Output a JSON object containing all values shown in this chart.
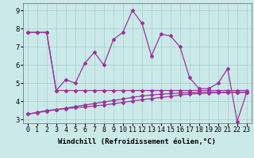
{
  "xlabel": "Windchill (Refroidissement éolien,°C)",
  "ylabel": "",
  "background_color": "#cce9e9",
  "grid_color": "#aad4d4",
  "line_color": "#993399",
  "x_values": [
    0,
    1,
    2,
    3,
    4,
    5,
    6,
    7,
    8,
    9,
    10,
    11,
    12,
    13,
    14,
    15,
    16,
    17,
    18,
    19,
    20,
    21,
    22,
    23
  ],
  "line1_y": [
    7.8,
    7.8,
    7.8,
    4.6,
    5.2,
    5.0,
    6.1,
    6.7,
    6.0,
    7.4,
    7.8,
    9.0,
    8.3,
    6.5,
    7.7,
    7.6,
    7.0,
    5.3,
    4.7,
    4.7,
    5.0,
    5.8,
    2.9,
    4.5
  ],
  "line2_y": [
    7.8,
    7.8,
    7.8,
    4.6,
    4.6,
    4.6,
    4.6,
    4.6,
    4.6,
    4.6,
    4.6,
    4.6,
    4.6,
    4.6,
    4.6,
    4.6,
    4.6,
    4.6,
    4.6,
    4.6,
    4.6,
    4.6,
    4.6,
    4.6
  ],
  "line3_y": [
    3.3,
    3.4,
    3.5,
    3.55,
    3.6,
    3.65,
    3.7,
    3.75,
    3.8,
    3.87,
    3.95,
    4.02,
    4.1,
    4.15,
    4.22,
    4.28,
    4.35,
    4.4,
    4.44,
    4.46,
    4.48,
    4.49,
    4.5,
    4.5
  ],
  "line4_y": [
    3.3,
    3.38,
    3.46,
    3.55,
    3.63,
    3.72,
    3.8,
    3.88,
    3.97,
    4.05,
    4.13,
    4.22,
    4.3,
    4.35,
    4.4,
    4.43,
    4.46,
    4.48,
    4.49,
    4.5,
    4.5,
    4.5,
    4.5,
    4.5
  ],
  "ylim": [
    2.8,
    9.4
  ],
  "xlim": [
    -0.5,
    23.5
  ],
  "yticks": [
    3,
    4,
    5,
    6,
    7,
    8,
    9
  ],
  "xticks": [
    0,
    1,
    2,
    3,
    4,
    5,
    6,
    7,
    8,
    9,
    10,
    11,
    12,
    13,
    14,
    15,
    16,
    17,
    18,
    19,
    20,
    21,
    22,
    23
  ],
  "xtick_labels": [
    "0",
    "1",
    "2",
    "3",
    "4",
    "5",
    "6",
    "7",
    "8",
    "9",
    "10",
    "11",
    "12",
    "13",
    "14",
    "15",
    "16",
    "17",
    "18",
    "19",
    "20",
    "21",
    "22",
    "23"
  ],
  "marker": "D",
  "markersize": 2,
  "linewidth": 0.9,
  "xlabel_fontsize": 6.5,
  "tick_fontsize": 6
}
